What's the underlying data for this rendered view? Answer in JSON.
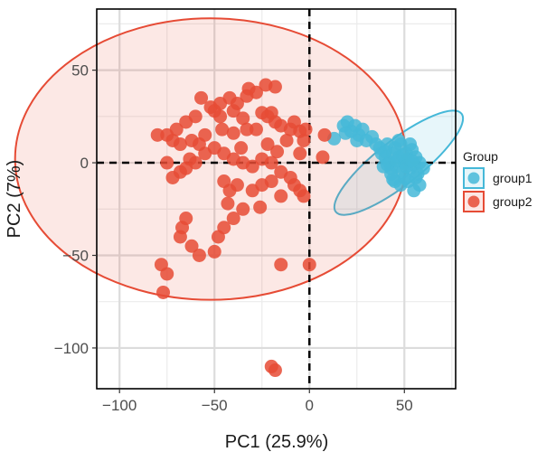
{
  "chart_data": {
    "type": "scatter",
    "title": "",
    "xlabel": "PC1 (25.9%)",
    "ylabel": "PC2 (7%)",
    "xlim": [
      -112,
      77
    ],
    "ylim": [
      -122,
      83
    ],
    "xticks": [
      -100,
      -50,
      0,
      50
    ],
    "xtick_labels": [
      "−100",
      "−50",
      "0",
      "50"
    ],
    "yticks": [
      -100,
      -50,
      0,
      50
    ],
    "ytick_labels": [
      "−100",
      "−50",
      "0",
      "50"
    ],
    "grid": true,
    "reference_lines": {
      "x": 0,
      "y": 0,
      "style": "dashed"
    },
    "legend": {
      "title": "Group",
      "position": "right"
    },
    "series": [
      {
        "name": "group1",
        "color": "#45B8D8",
        "ellipse": {
          "cx": 47,
          "cy": 0,
          "rx": 42,
          "ry": 12,
          "angle_deg": -38
        },
        "points": [
          [
            18,
            20
          ],
          [
            20,
            22
          ],
          [
            22,
            17
          ],
          [
            24,
            20
          ],
          [
            26,
            15
          ],
          [
            28,
            18
          ],
          [
            19,
            16
          ],
          [
            25,
            12
          ],
          [
            30,
            12
          ],
          [
            33,
            14
          ],
          [
            35,
            10
          ],
          [
            37,
            8
          ],
          [
            38,
            5
          ],
          [
            40,
            3
          ],
          [
            41,
            10
          ],
          [
            42,
            0
          ],
          [
            43,
            -3
          ],
          [
            44,
            5
          ],
          [
            45,
            8
          ],
          [
            46,
            -2
          ],
          [
            47,
            3
          ],
          [
            48,
            10
          ],
          [
            49,
            -5
          ],
          [
            50,
            0
          ],
          [
            51,
            5
          ],
          [
            52,
            2
          ],
          [
            53,
            -3
          ],
          [
            54,
            7
          ],
          [
            55,
            -1
          ],
          [
            56,
            3
          ],
          [
            57,
            -6
          ],
          [
            58,
            0
          ],
          [
            45,
            -10
          ],
          [
            48,
            -12
          ],
          [
            52,
            -10
          ],
          [
            55,
            -15
          ],
          [
            58,
            -12
          ],
          [
            60,
            -3
          ],
          [
            50,
            -8
          ],
          [
            43,
            -6
          ],
          [
            47,
            12
          ],
          [
            53,
            10
          ],
          [
            41,
            -1
          ],
          [
            46,
            1
          ],
          [
            49,
            4
          ],
          [
            51,
            -2
          ],
          [
            54,
            1
          ],
          [
            44,
            -9
          ],
          [
            56,
            -8
          ],
          [
            40,
            6
          ],
          [
            13,
            13
          ],
          [
            39,
            -2
          ]
        ]
      },
      {
        "name": "group2",
        "color": "#E64B35",
        "ellipse": {
          "cx": -52,
          "cy": 2,
          "rx": 103,
          "ry": 76,
          "angle_deg": 0
        },
        "points": [
          [
            -32,
            40
          ],
          [
            -28,
            38
          ],
          [
            -33,
            36
          ],
          [
            -38,
            32
          ],
          [
            -42,
            35
          ],
          [
            -47,
            32
          ],
          [
            -52,
            30
          ],
          [
            -57,
            35
          ],
          [
            -23,
            42
          ],
          [
            -18,
            41
          ],
          [
            -50,
            28
          ],
          [
            -47,
            25
          ],
          [
            -40,
            28
          ],
          [
            -35,
            24
          ],
          [
            -25,
            27
          ],
          [
            -22,
            25
          ],
          [
            -20,
            27
          ],
          [
            -18,
            22
          ],
          [
            -15,
            20
          ],
          [
            -10,
            18
          ],
          [
            -8,
            22
          ],
          [
            -5,
            17
          ],
          [
            -3,
            12
          ],
          [
            -2,
            18
          ],
          [
            -60,
            25
          ],
          [
            -65,
            22
          ],
          [
            -70,
            18
          ],
          [
            -75,
            15
          ],
          [
            -72,
            12
          ],
          [
            -68,
            10
          ],
          [
            -62,
            12
          ],
          [
            -58,
            10
          ],
          [
            -55,
            5
          ],
          [
            -50,
            8
          ],
          [
            -45,
            5
          ],
          [
            -40,
            2
          ],
          [
            -35,
            0
          ],
          [
            -30,
            -2
          ],
          [
            -25,
            2
          ],
          [
            -20,
            0
          ],
          [
            -15,
            -5
          ],
          [
            -10,
            -8
          ],
          [
            -8,
            -12
          ],
          [
            -5,
            -15
          ],
          [
            -3,
            -18
          ],
          [
            -60,
            0
          ],
          [
            -65,
            -3
          ],
          [
            -68,
            -5
          ],
          [
            -72,
            -8
          ],
          [
            -75,
            0
          ],
          [
            -45,
            -10
          ],
          [
            -42,
            -15
          ],
          [
            -38,
            -12
          ],
          [
            -30,
            -15
          ],
          [
            -25,
            -12
          ],
          [
            -20,
            -10
          ],
          [
            -15,
            -18
          ],
          [
            -65,
            -30
          ],
          [
            -67,
            -35
          ],
          [
            -68,
            -40
          ],
          [
            -62,
            -45
          ],
          [
            -58,
            -50
          ],
          [
            -50,
            -48
          ],
          [
            -48,
            -40
          ],
          [
            -45,
            -35
          ],
          [
            -40,
            -30
          ],
          [
            -35,
            -25
          ],
          [
            -78,
            -55
          ],
          [
            -75,
            -60
          ],
          [
            -77,
            -70
          ],
          [
            -15,
            -55
          ],
          [
            0,
            -55
          ],
          [
            -20,
            -110
          ],
          [
            -18,
            -112
          ],
          [
            -80,
            15
          ],
          [
            -5,
            5
          ],
          [
            8,
            15
          ],
          [
            7,
            3
          ],
          [
            -28,
            18
          ],
          [
            -12,
            12
          ],
          [
            -33,
            18
          ],
          [
            -55,
            15
          ],
          [
            -63,
            2
          ],
          [
            -46,
            18
          ],
          [
            -40,
            16
          ],
          [
            -22,
            10
          ],
          [
            -17,
            6
          ],
          [
            -36,
            8
          ],
          [
            -43,
            -22
          ],
          [
            -26,
            -24
          ]
        ]
      }
    ]
  }
}
